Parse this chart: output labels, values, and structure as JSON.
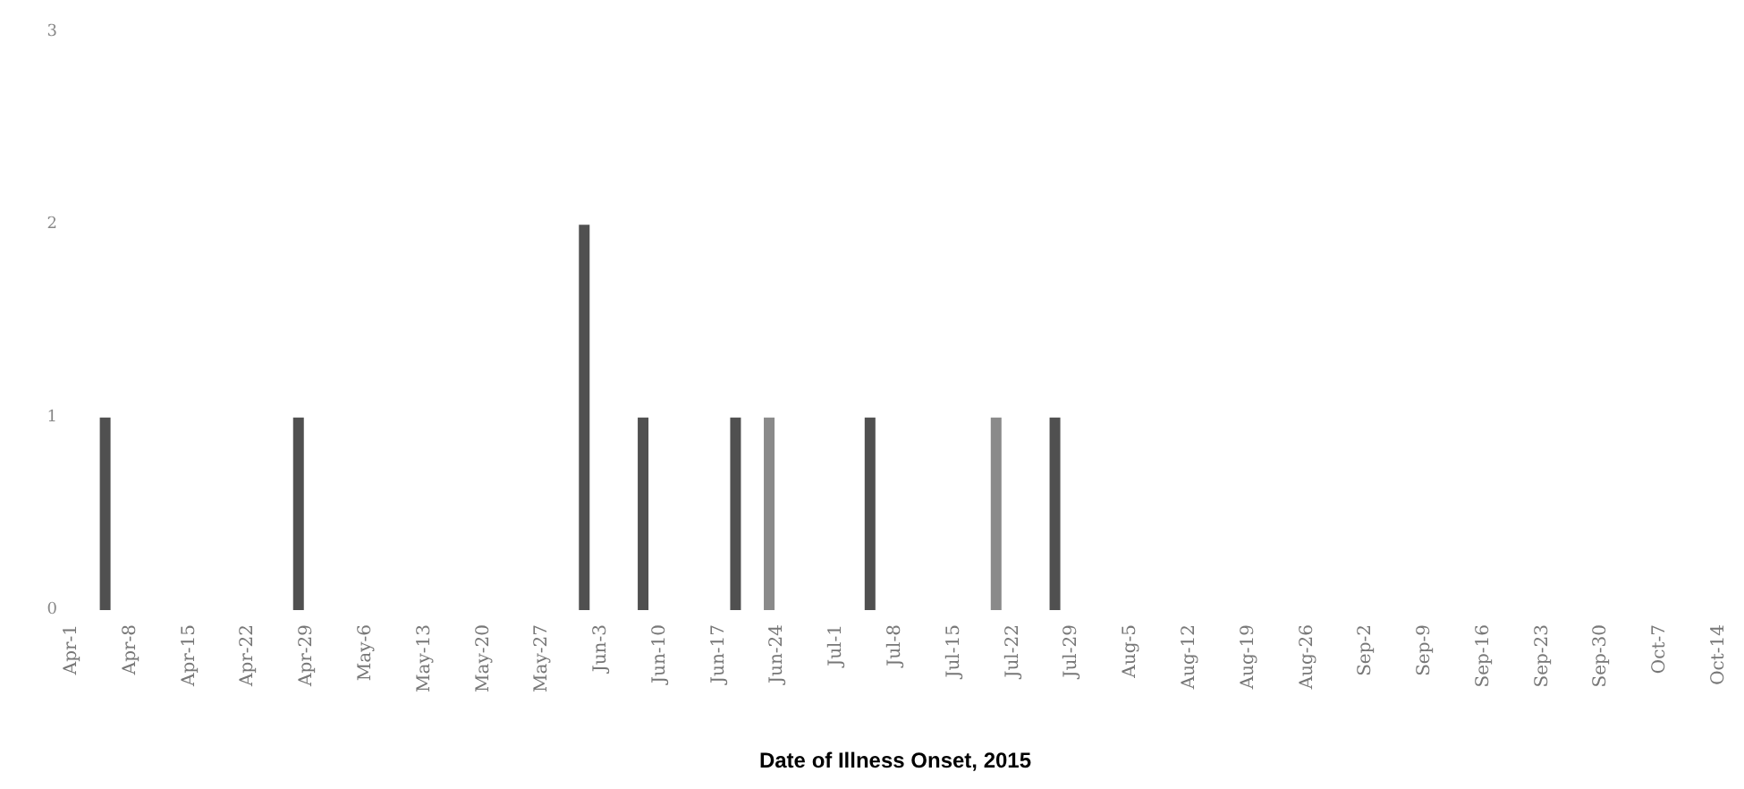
{
  "chart_data": {
    "type": "bar",
    "xlabel": "Date of Illness Onset, 2015",
    "x": [
      "2015-04-05",
      "2015-04-28",
      "2015-06-01",
      "2015-06-08",
      "2015-06-19",
      "2015-06-23",
      "2015-07-05",
      "2015-07-20",
      "2015-07-27"
    ],
    "values": [
      1,
      1,
      2,
      1,
      1,
      1,
      1,
      1,
      1
    ],
    "colors": [
      "#505050",
      "#505050",
      "#505050",
      "#505050",
      "#505050",
      "#8a8a8a",
      "#505050",
      "#8a8a8a",
      "#505050"
    ],
    "xlim": [
      "2015-04-01",
      "2015-10-14"
    ],
    "xticks": [
      {
        "value": "2015-04-01",
        "label": "Apr-1"
      },
      {
        "value": "2015-04-08",
        "label": "Apr-8"
      },
      {
        "value": "2015-04-15",
        "label": "Apr-15"
      },
      {
        "value": "2015-04-22",
        "label": "Apr-22"
      },
      {
        "value": "2015-04-29",
        "label": "Apr-29"
      },
      {
        "value": "2015-05-06",
        "label": "May-6"
      },
      {
        "value": "2015-05-13",
        "label": "May-13"
      },
      {
        "value": "2015-05-20",
        "label": "May-20"
      },
      {
        "value": "2015-05-27",
        "label": "May-27"
      },
      {
        "value": "2015-06-03",
        "label": "Jun-3"
      },
      {
        "value": "2015-06-10",
        "label": "Jun-10"
      },
      {
        "value": "2015-06-17",
        "label": "Jun-17"
      },
      {
        "value": "2015-06-24",
        "label": "Jun-24"
      },
      {
        "value": "2015-07-01",
        "label": "Jul-1"
      },
      {
        "value": "2015-07-08",
        "label": "Jul-8"
      },
      {
        "value": "2015-07-15",
        "label": "Jul-15"
      },
      {
        "value": "2015-07-22",
        "label": "Jul-22"
      },
      {
        "value": "2015-07-29",
        "label": "Jul-29"
      },
      {
        "value": "2015-08-05",
        "label": "Aug-5"
      },
      {
        "value": "2015-08-12",
        "label": "Aug-12"
      },
      {
        "value": "2015-08-19",
        "label": "Aug-19"
      },
      {
        "value": "2015-08-26",
        "label": "Aug-26"
      },
      {
        "value": "2015-09-02",
        "label": "Sep-2"
      },
      {
        "value": "2015-09-09",
        "label": "Sep-9"
      },
      {
        "value": "2015-09-16",
        "label": "Sep-16"
      },
      {
        "value": "2015-09-23",
        "label": "Sep-23"
      },
      {
        "value": "2015-09-30",
        "label": "Sep-30"
      },
      {
        "value": "2015-10-07",
        "label": "Oct-7"
      },
      {
        "value": "2015-10-14",
        "label": "Oct-14"
      }
    ],
    "ylim": [
      0,
      3
    ],
    "yticks": [
      0,
      1,
      2,
      3
    ],
    "grid": false
  }
}
